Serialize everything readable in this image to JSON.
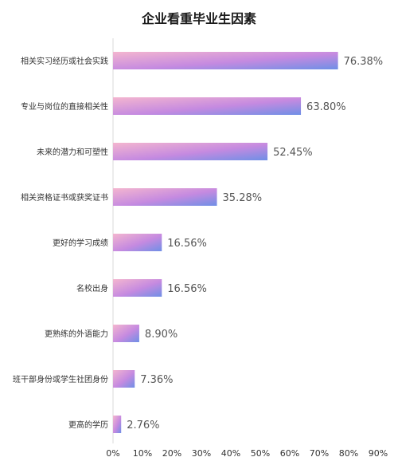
{
  "chart_data": {
    "type": "bar",
    "orientation": "horizontal",
    "title": "企业看重毕业生因素",
    "xlabel": "",
    "ylabel": "",
    "categories": [
      "相关实习经历或社会实践",
      "专业与岗位的直接相关性",
      "未来的潜力和可塑性",
      "相关资格证书或获奖证书",
      "更好的学习成绩",
      "名校出身",
      "更熟练的外语能力",
      "班干部身份或学生社团身份",
      "更高的学历"
    ],
    "values": [
      76.38,
      63.8,
      52.45,
      35.28,
      16.56,
      16.56,
      8.9,
      7.36,
      2.76
    ],
    "value_labels": [
      "76.38%",
      "63.80%",
      "52.45%",
      "35.28%",
      "16.56%",
      "16.56%",
      "8.90%",
      "7.36%",
      "2.76%"
    ],
    "xlim": [
      0,
      90
    ],
    "x_ticks": [
      "0%",
      "10%",
      "20%",
      "30%",
      "40%",
      "50%",
      "60%",
      "70%",
      "80%",
      "90%"
    ],
    "grid": false,
    "colors": {
      "bar_gradient_start": "#f4b6cf",
      "bar_gradient_mid": "#c58ae0",
      "bar_gradient_end": "#6f8fe6",
      "axis": "#d9d9d9",
      "label": "#333333",
      "value_label": "#555555"
    }
  }
}
